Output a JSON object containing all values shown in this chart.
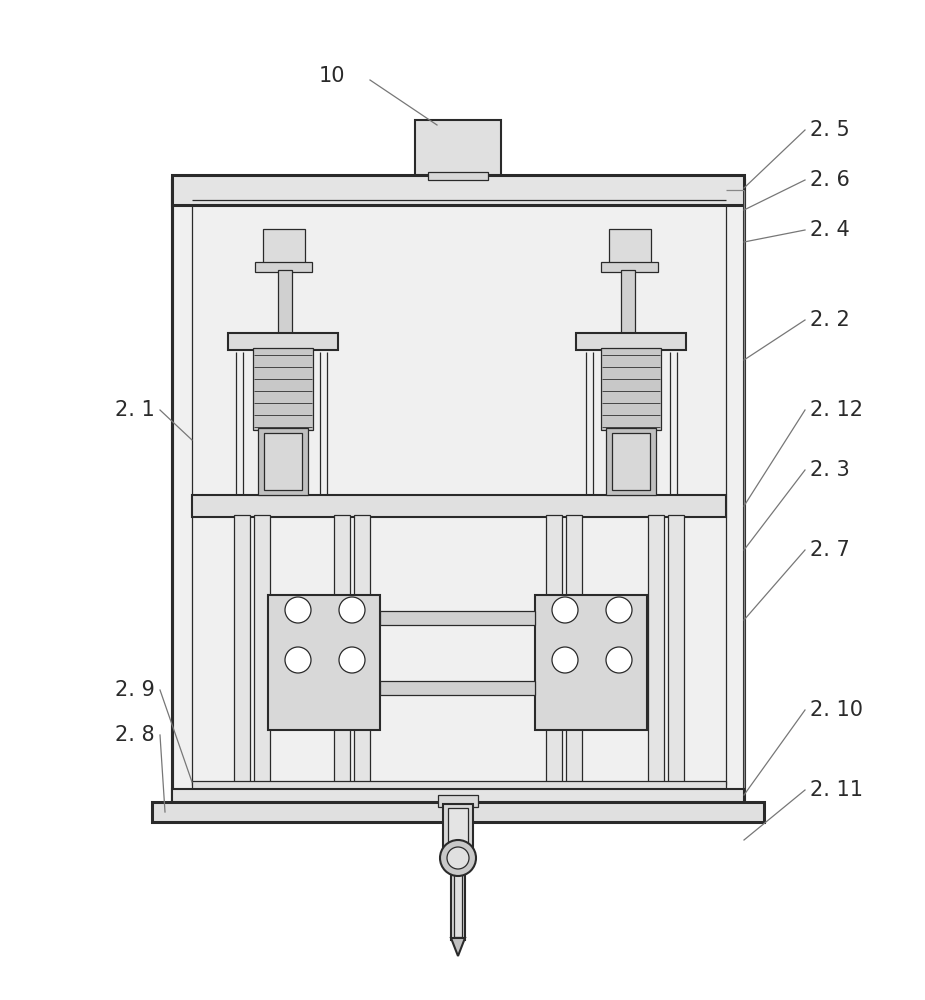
{
  "bg": "#ffffff",
  "lc": "#2a2a2a",
  "gray_line": "#777777",
  "label_color": "#2a2a2a",
  "label_fs": 15,
  "lw_thick": 2.2,
  "lw_med": 1.5,
  "lw_thin": 0.9
}
